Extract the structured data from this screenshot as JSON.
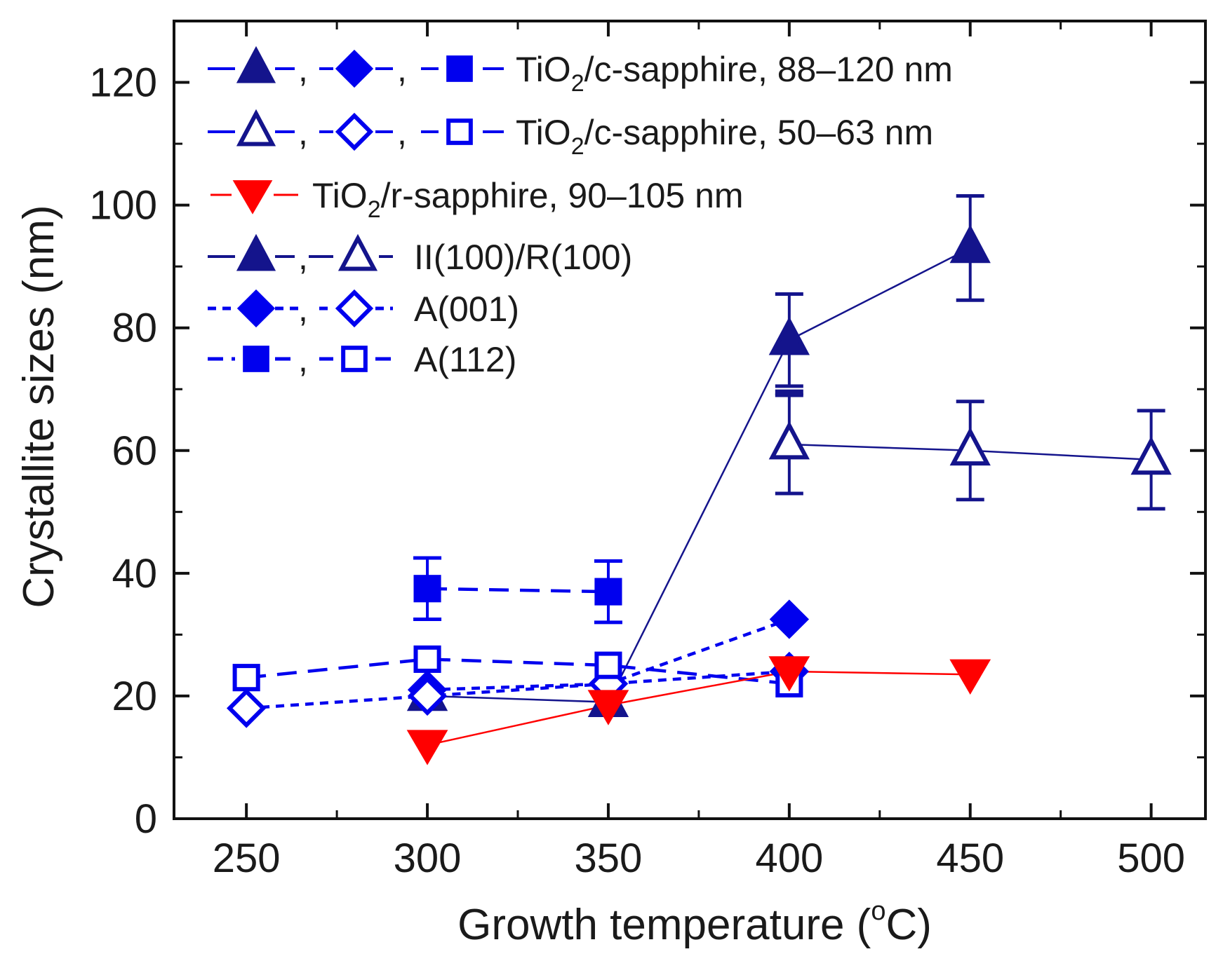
{
  "chart_data": {
    "type": "scatter",
    "xlabel_parts": {
      "pre": "Growth temperature (",
      "sup": "o",
      "post": "C)"
    },
    "ylabel": "Crystallite sizes (nm)",
    "xlim": [
      230,
      515
    ],
    "ylim": [
      0,
      130
    ],
    "xticks": [
      250,
      300,
      350,
      400,
      450,
      500
    ],
    "xtick_labels": [
      "250",
      "300",
      "350",
      "400",
      "450",
      "500"
    ],
    "yticks": [
      0,
      20,
      40,
      60,
      80,
      100,
      120
    ],
    "ytick_labels": [
      "0",
      "20",
      "40",
      "60",
      "80",
      "100",
      "120"
    ],
    "legend_position": "top-left",
    "legend": [
      {
        "text_pre": "TiO",
        "text_sub": "2",
        "text_post": "/c-sapphire, 88–120 nm"
      },
      {
        "text_pre": "TiO",
        "text_sub": "2",
        "text_post": "/c-sapphire, 50–63 nm"
      },
      {
        "text_pre": "TiO",
        "text_sub": "2",
        "text_post": "/r-sapphire, 90–105 nm"
      },
      {
        "text_pre": "II(100)/R(100)",
        "text_sub": "",
        "text_post": ""
      },
      {
        "text_pre": "A(001)",
        "text_sub": "",
        "text_post": ""
      },
      {
        "text_pre": "A(112)",
        "text_sub": "",
        "text_post": ""
      }
    ],
    "legend_separator": ",",
    "series": [
      {
        "name": "II(100)/R(100) thick (88–120 nm)",
        "marker": "triangle-up",
        "filled": true,
        "color": "#14148c",
        "line": "solid",
        "points": [
          {
            "x": 300,
            "y": 20
          },
          {
            "x": 350,
            "y": 19
          },
          {
            "x": 400,
            "y": 78,
            "err": 7.5
          },
          {
            "x": 450,
            "y": 93,
            "err": 8.5
          }
        ]
      },
      {
        "name": "II(100)/R(100) thin (50–63 nm)",
        "marker": "triangle-up",
        "filled": false,
        "color": "#14148c",
        "line": "solid",
        "points": [
          {
            "x": 400,
            "y": 61,
            "err": 8
          },
          {
            "x": 450,
            "y": 60,
            "err": 8
          },
          {
            "x": 500,
            "y": 58.5,
            "err": 8
          }
        ]
      },
      {
        "name": "A(001) thick",
        "marker": "diamond",
        "filled": true,
        "color": "#0000ee",
        "line": "dotted",
        "points": [
          {
            "x": 300,
            "y": 21
          },
          {
            "x": 350,
            "y": 22
          },
          {
            "x": 400,
            "y": 32.5
          }
        ]
      },
      {
        "name": "A(001) thin",
        "marker": "diamond",
        "filled": false,
        "color": "#0000ee",
        "line": "dotted",
        "points": [
          {
            "x": 250,
            "y": 18
          },
          {
            "x": 300,
            "y": 20
          },
          {
            "x": 350,
            "y": 22
          },
          {
            "x": 400,
            "y": 24
          }
        ]
      },
      {
        "name": "A(112) thick",
        "marker": "square",
        "filled": true,
        "color": "#0000ee",
        "line": "dashed",
        "points": [
          {
            "x": 300,
            "y": 37.5,
            "err": 5
          },
          {
            "x": 350,
            "y": 37,
            "err": 5
          }
        ]
      },
      {
        "name": "A(112) thin",
        "marker": "square",
        "filled": false,
        "color": "#0000ee",
        "line": "dashed",
        "points": [
          {
            "x": 250,
            "y": 23
          },
          {
            "x": 300,
            "y": 26
          },
          {
            "x": 350,
            "y": 25
          },
          {
            "x": 400,
            "y": 22
          }
        ]
      },
      {
        "name": "TiO2/r-sapphire (90–105 nm)",
        "marker": "triangle-down",
        "filled": true,
        "color": "#ff0000",
        "line": "solid",
        "points": [
          {
            "x": 300,
            "y": 12
          },
          {
            "x": 350,
            "y": 18.5
          },
          {
            "x": 400,
            "y": 24
          },
          {
            "x": 450,
            "y": 23.5
          }
        ]
      }
    ],
    "extra_marks": [
      {
        "name": "A(112) thick error tick",
        "x": 400,
        "y": 69.5,
        "color": "#14148c"
      }
    ]
  }
}
